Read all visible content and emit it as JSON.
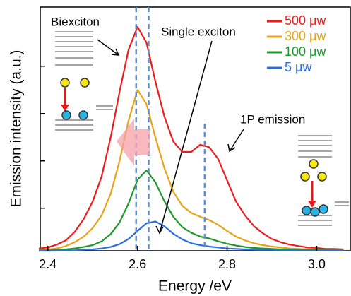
{
  "chart_data": {
    "type": "line",
    "xlabel": "Energy /eV",
    "ylabel": "Emission intensity (a.u.)",
    "xlim": [
      2.383,
      3.075
    ],
    "ylim": [
      0,
      5.15
    ],
    "xticks": [
      {
        "value": 2.4,
        "label": "2.4"
      },
      {
        "value": 2.6,
        "label": "2.6"
      },
      {
        "value": 2.8,
        "label": "2.8"
      },
      {
        "value": 3.0,
        "label": "3.0"
      }
    ],
    "yticks": [
      0.9,
      1.9,
      2.9,
      3.9
    ],
    "x": [
      2.38,
      2.4,
      2.42,
      2.44,
      2.46,
      2.48,
      2.5,
      2.52,
      2.54,
      2.56,
      2.58,
      2.6,
      2.62,
      2.64,
      2.66,
      2.68,
      2.7,
      2.72,
      2.74,
      2.76,
      2.78,
      2.8,
      2.82,
      2.84,
      2.86,
      2.88,
      2.9,
      2.92,
      2.94,
      2.96,
      2.98,
      3.0,
      3.02,
      3.04,
      3.06
    ],
    "series": [
      {
        "name": "500 μw",
        "color": "#ee1c1c",
        "values": [
          0.05,
          0.07,
          0.13,
          0.22,
          0.4,
          0.67,
          1.04,
          1.57,
          2.39,
          3.36,
          4.25,
          4.73,
          4.4,
          3.58,
          2.84,
          2.31,
          2.09,
          2.09,
          2.24,
          2.19,
          1.94,
          1.49,
          1.04,
          0.75,
          0.52,
          0.37,
          0.25,
          0.18,
          0.13,
          0.1,
          0.07,
          0.06,
          0.04,
          0.04,
          0.03
        ]
      },
      {
        "name": "300 μw",
        "color": "#e8a318",
        "values": [
          0.02,
          0.03,
          0.05,
          0.1,
          0.18,
          0.3,
          0.48,
          0.75,
          1.2,
          1.9,
          2.75,
          3.4,
          3.1,
          2.4,
          1.75,
          1.25,
          0.95,
          0.8,
          0.72,
          0.65,
          0.55,
          0.42,
          0.3,
          0.22,
          0.16,
          0.12,
          0.09,
          0.07,
          0.05,
          0.04,
          0.03,
          0.03,
          0.02,
          0.02,
          0.02
        ]
      },
      {
        "name": "100 μw",
        "color": "#1e9a2a",
        "values": [
          0.01,
          0.01,
          0.02,
          0.03,
          0.05,
          0.08,
          0.12,
          0.2,
          0.35,
          0.6,
          1.0,
          1.5,
          1.7,
          1.45,
          1.05,
          0.72,
          0.5,
          0.38,
          0.3,
          0.26,
          0.2,
          0.15,
          0.11,
          0.08,
          0.06,
          0.05,
          0.04,
          0.03,
          0.03,
          0.02,
          0.02,
          0.02,
          0.02,
          0.02,
          0.02
        ]
      },
      {
        "name": "5 μw",
        "color": "#2a6fe8",
        "values": [
          0,
          0,
          0,
          0.01,
          0.01,
          0.02,
          0.03,
          0.05,
          0.08,
          0.14,
          0.25,
          0.42,
          0.58,
          0.62,
          0.52,
          0.36,
          0.24,
          0.16,
          0.12,
          0.09,
          0.07,
          0.05,
          0.04,
          0.03,
          0.02,
          0.02,
          0.02,
          0.01,
          0.01,
          0.01,
          0.01,
          0.01,
          0.01,
          0.01,
          0.01
        ]
      }
    ],
    "vlines": [
      2.597,
      2.625,
      2.75
    ],
    "vline_color": "#5b8fd6",
    "annotations": [
      "Biexciton",
      "Single exciton",
      "1P emission"
    ]
  }
}
